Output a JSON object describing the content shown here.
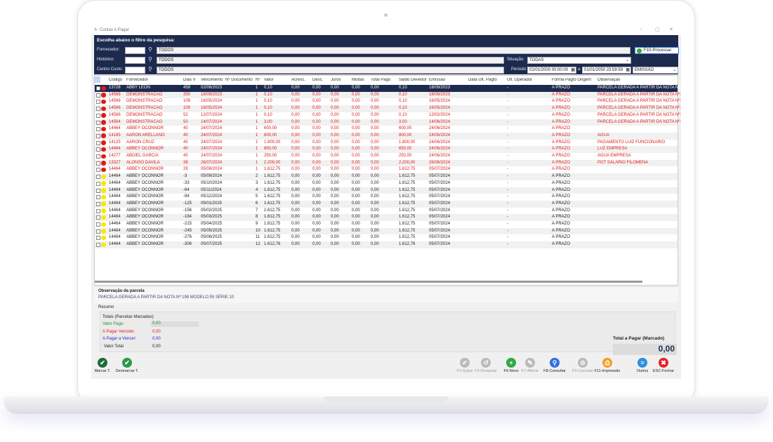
{
  "window": {
    "title": "Contas A Pagar",
    "min": "–",
    "max": "▢",
    "close": "✕"
  },
  "filter": {
    "heading": "Escolha abaixo o filtro da pesquisa:",
    "fornecedor_label": "Fornecedor:",
    "fornecedor_value": "TODOS",
    "historico_label": "Histórico:",
    "historico_value": "TODOS",
    "centro_label": "Centro Custo:",
    "centro_value": "TODOS",
    "situacao_label": "Situação:",
    "situacao_value": "TODAS",
    "periodo_label": "Período:",
    "periodo_from": "01/01/2000 00:00:00",
    "periodo_sep": "a",
    "periodo_to": "01/01/2050 23:59:59",
    "periodo_type": "EMISSÃO",
    "process_button": "F10-Processar"
  },
  "grid": {
    "columns": [
      "Código",
      "Fornecedor",
      "Dias V",
      "Vencimento",
      "Nº Documento",
      "Nº",
      "Valor",
      "Acrésc.",
      "Desc.",
      "Juros",
      "Multas",
      "Total Pago",
      "Saldo Devedor",
      "Emissão",
      "Data Ult. Pagto",
      "Ult. Operador",
      "Forma Pagto Origem",
      "Observação"
    ],
    "rows": [
      [
        "13728",
        "ABBY LEON",
        "458",
        "02/06/2023",
        "",
        "1",
        "0,10",
        "0,00",
        "0,00",
        "0,00",
        "0,00",
        "0,00",
        "0,10",
        "18/09/2023",
        "",
        "-",
        "A PRAZO",
        "PARCELA  GERADA   A  PARTIR  DA  NOTA  Nº:1"
      ],
      [
        "14566",
        "DEMONSTRACAO",
        "350",
        "18/09/2023",
        "",
        "1",
        "0,10",
        "0,00",
        "0,00",
        "0,00",
        "0,00",
        "0,00",
        "0,10",
        "18/09/2023",
        "",
        "-",
        "A PRAZO",
        "PARCELA  GERADA   A  PARTIR  DA  NOTA  Nº:1"
      ],
      [
        "14566",
        "DEMONSTRACAO",
        "109",
        "16/05/2024",
        "",
        "1",
        "0,10",
        "0,00",
        "0,00",
        "0,00",
        "0,00",
        "0,00",
        "0,10",
        "16/05/2024",
        "",
        "-",
        "A PRAZO",
        "PARCELA  GERADA   A  PARTIR  DA  NOTA  Nº:1"
      ],
      [
        "14566",
        "DEMONSTRACAO",
        "109",
        "16/05/2024",
        "",
        "1",
        "0,10",
        "0,00",
        "0,00",
        "0,00",
        "0,00",
        "0,00",
        "0,10",
        "16/05/2024",
        "",
        "-",
        "A PRAZO",
        "PARCELA  GERADA   A  PARTIR  DA  NOTA  Nº:5"
      ],
      [
        "14566",
        "DEMONSTRACAO",
        "52",
        "12/07/2024",
        "",
        "1",
        "0,10",
        "0,00",
        "0,00",
        "0,00",
        "0,00",
        "0,00",
        "0,10",
        "12/02/2024",
        "",
        "-",
        "A PRAZO",
        "PARCELA  GERADA   A  PARTIR  DA  NOTA  Nº:1"
      ],
      [
        "14564",
        "DEMONSTRACAO",
        "50",
        "14/07/2024",
        "",
        "1",
        "3,00",
        "0,00",
        "0,00",
        "0,00",
        "0,00",
        "0,00",
        "3,00",
        "14/06/2024",
        "",
        "-",
        "A PRAZO",
        "PARCELA  GERADA   A  PARTIR  DA  NOTA  Nº:1"
      ],
      [
        "14464",
        "ABBEY OCONNOR",
        "40",
        "24/07/2024",
        "",
        "1",
        "600,00",
        "0,00",
        "0,00",
        "0,00",
        "0,00",
        "0,00",
        "600,00",
        "24/06/2024",
        "",
        "-",
        "A PRAZO",
        ""
      ],
      [
        "14185",
        "AARON ARELLANO",
        "40",
        "24/07/2024",
        "",
        "1",
        "800,00",
        "0,00",
        "0,00",
        "0,00",
        "0,00",
        "0,00",
        "800,00",
        "24/06/2024",
        "",
        "-",
        "A PRAZO",
        "AGUA"
      ],
      [
        "14125",
        "AARON CRUZ",
        "40",
        "24/07/2024",
        "",
        "1",
        "1.800,00",
        "0,00",
        "0,00",
        "0,00",
        "0,00",
        "0,00",
        "1.800,00",
        "24/06/2024",
        "",
        "-",
        "A PRAZO",
        "PAGAMENTO LUIZ FUNCIONARIO"
      ],
      [
        "14464",
        "ABBEY OCONNOR",
        "40",
        "24/07/2024",
        "",
        "1",
        "650,00",
        "0,00",
        "0,00",
        "0,00",
        "0,00",
        "0,00",
        "650,00",
        "24/06/2024",
        "",
        "-",
        "A PRAZO",
        "LUZ EMPRESA"
      ],
      [
        "14277",
        "ABDIEL GARCIA",
        "40",
        "24/07/2024",
        "",
        "1",
        "250,00",
        "0,00",
        "0,00",
        "0,00",
        "0,00",
        "0,00",
        "250,00",
        "24/06/2024",
        "",
        "-",
        "A PRAZO",
        "AGUA EMPRESA"
      ],
      [
        "13327",
        "ALONSO DAVILA",
        "38",
        "26/07/2024",
        "",
        "1",
        "2.200,00",
        "0,00",
        "0,00",
        "0,00",
        "0,00",
        "0,00",
        "2.200,00",
        "26/06/2024",
        "",
        "-",
        "A PRAZO",
        "PGT SALARIO FILOMENA"
      ],
      [
        "14464",
        "ABBEY OCONNOR",
        "28",
        "05/08/2024",
        "",
        "1",
        "1.612,75",
        "0,00",
        "0,00",
        "0,00",
        "0,00",
        "0,00",
        "1.612,75",
        "05/07/2024",
        "",
        "-",
        "A PRAZO",
        ""
      ],
      [
        "14464",
        "ABBEY OCONNOR",
        "-3",
        "05/09/2024",
        "",
        "2",
        "1.612,75",
        "0,00",
        "0,00",
        "0,00",
        "0,00",
        "0,00",
        "1.612,75",
        "05/07/2024",
        "",
        "-",
        "A PRAZO",
        ""
      ],
      [
        "14464",
        "ABBEY OCONNOR",
        "-33",
        "05/10/2024",
        "",
        "3",
        "1.612,75",
        "0,00",
        "0,00",
        "0,00",
        "0,00",
        "0,00",
        "1.612,75",
        "05/07/2024",
        "",
        "-",
        "A PRAZO",
        ""
      ],
      [
        "14464",
        "ABBEY OCONNOR",
        "-64",
        "05/11/2024",
        "",
        "4",
        "1.612,75",
        "0,00",
        "0,00",
        "0,00",
        "0,00",
        "0,00",
        "1.612,75",
        "05/07/2024",
        "",
        "-",
        "A PRAZO",
        ""
      ],
      [
        "14464",
        "ABBEY OCONNOR",
        "-94",
        "05/12/2024",
        "",
        "5",
        "1.612,75",
        "0,00",
        "0,00",
        "0,00",
        "0,00",
        "0,00",
        "1.612,75",
        "05/07/2024",
        "",
        "-",
        "A PRAZO",
        ""
      ],
      [
        "14464",
        "ABBEY OCONNOR",
        "-125",
        "05/01/2025",
        "",
        "6",
        "1.612,75",
        "0,00",
        "0,00",
        "0,00",
        "0,00",
        "0,00",
        "1.612,75",
        "05/07/2024",
        "",
        "-",
        "A PRAZO",
        ""
      ],
      [
        "14464",
        "ABBEY OCONNOR",
        "-156",
        "05/02/2025",
        "",
        "7",
        "1.612,75",
        "0,00",
        "0,00",
        "0,00",
        "0,00",
        "0,00",
        "1.612,75",
        "05/07/2024",
        "",
        "-",
        "A PRAZO",
        ""
      ],
      [
        "14464",
        "ABBEY OCONNOR",
        "-184",
        "05/03/2025",
        "",
        "8",
        "1.612,75",
        "0,00",
        "0,00",
        "0,00",
        "0,00",
        "0,00",
        "1.612,75",
        "05/07/2024",
        "",
        "-",
        "A PRAZO",
        ""
      ],
      [
        "14464",
        "ABBEY OCONNOR",
        "-215",
        "05/04/2025",
        "",
        "9",
        "1.612,75",
        "0,00",
        "0,00",
        "0,00",
        "0,00",
        "0,00",
        "1.612,75",
        "05/07/2024",
        "",
        "-",
        "A PRAZO",
        ""
      ],
      [
        "14464",
        "ABBEY OCONNOR",
        "-245",
        "05/05/2025",
        "",
        "10",
        "1.612,75",
        "0,00",
        "0,00",
        "0,00",
        "0,00",
        "0,00",
        "1.612,75",
        "05/07/2024",
        "",
        "-",
        "A PRAZO",
        ""
      ],
      [
        "14464",
        "ABBEY OCONNOR",
        "-276",
        "05/06/2025",
        "",
        "11",
        "1.612,75",
        "0,00",
        "0,00",
        "0,00",
        "0,00",
        "0,00",
        "1.612,75",
        "05/07/2024",
        "",
        "-",
        "A PRAZO",
        ""
      ],
      [
        "14464",
        "ABBEY OCONNOR",
        "-306",
        "05/07/2025",
        "",
        "12",
        "1.612,76",
        "0,00",
        "0,00",
        "0,00",
        "0,00",
        "0,00",
        "1.612,76",
        "05/07/2024",
        "",
        "-",
        "A PRAZO",
        ""
      ]
    ],
    "row_status": [
      "overdue",
      "overdue",
      "overdue",
      "overdue",
      "overdue",
      "overdue",
      "overdue",
      "overdue",
      "overdue",
      "overdue",
      "overdue",
      "overdue",
      "overdue",
      "due",
      "due",
      "due",
      "due",
      "due",
      "due",
      "due",
      "due",
      "due",
      "due",
      "due"
    ],
    "selected_row": 0,
    "colors": {
      "overdue": "#e01a1a",
      "due": "#f5e800",
      "selected": "#1c2a4d"
    }
  },
  "observacao": {
    "title": "Observação da parcela",
    "text": "PARCELA  GERADA   A  PARTIR  DA  NOTA  Nº:198   MODELO:55   SÉRIE:10"
  },
  "resumo": {
    "title": "Resumo",
    "totais": "Totais (Parcelas Marcadas)",
    "valor_pago_label": "Valor Pago:",
    "valor_pago": "0,00",
    "vencido_label": "A Pagar Vencido:",
    "vencido": "0,00",
    "vencer_label": "A Pagar a Vencer:",
    "vencer": "0,00",
    "total_label": "Valor Total",
    "total": "0,00"
  },
  "total_pagar": {
    "label": "Total a Pagar (Marcado)",
    "value": "0,00"
  },
  "toolbar": {
    "marcar": "Marcar T.",
    "desmarcar": "Desmarcar T.",
    "buttons": [
      {
        "label": "F2-Quitar",
        "icon": "check-icon",
        "color": "#bbbbbb",
        "glyph": "✔",
        "enabled": false
      },
      {
        "label": "F3-Desquitar",
        "icon": "undo-icon",
        "color": "#bbbbbb",
        "glyph": "↺",
        "enabled": false
      },
      {
        "label": "F6-Novo",
        "icon": "plus-icon",
        "color": "#2faa45",
        "glyph": "+",
        "enabled": true
      },
      {
        "label": "F7-Alterar",
        "icon": "edit-icon",
        "color": "#bbbbbb",
        "glyph": "✎",
        "enabled": false
      },
      {
        "label": "F8-Consultar",
        "icon": "search-icon",
        "color": "#2f6fe0",
        "glyph": "⚲",
        "enabled": true
      },
      {
        "label": "F9-Cancelar",
        "icon": "cancel-icon",
        "color": "#bbbbbb",
        "glyph": "⊘",
        "enabled": false
      },
      {
        "label": "F11-Impressão",
        "icon": "print-icon",
        "color": "#f59a23",
        "glyph": "⎙",
        "enabled": true
      },
      {
        "label": "Outros",
        "icon": "list-icon",
        "color": "#2f8fe0",
        "glyph": "≡",
        "enabled": true
      },
      {
        "label": "ESC-Fechar",
        "icon": "close-icon",
        "color": "#e8202a",
        "glyph": "✖",
        "enabled": true
      }
    ]
  }
}
